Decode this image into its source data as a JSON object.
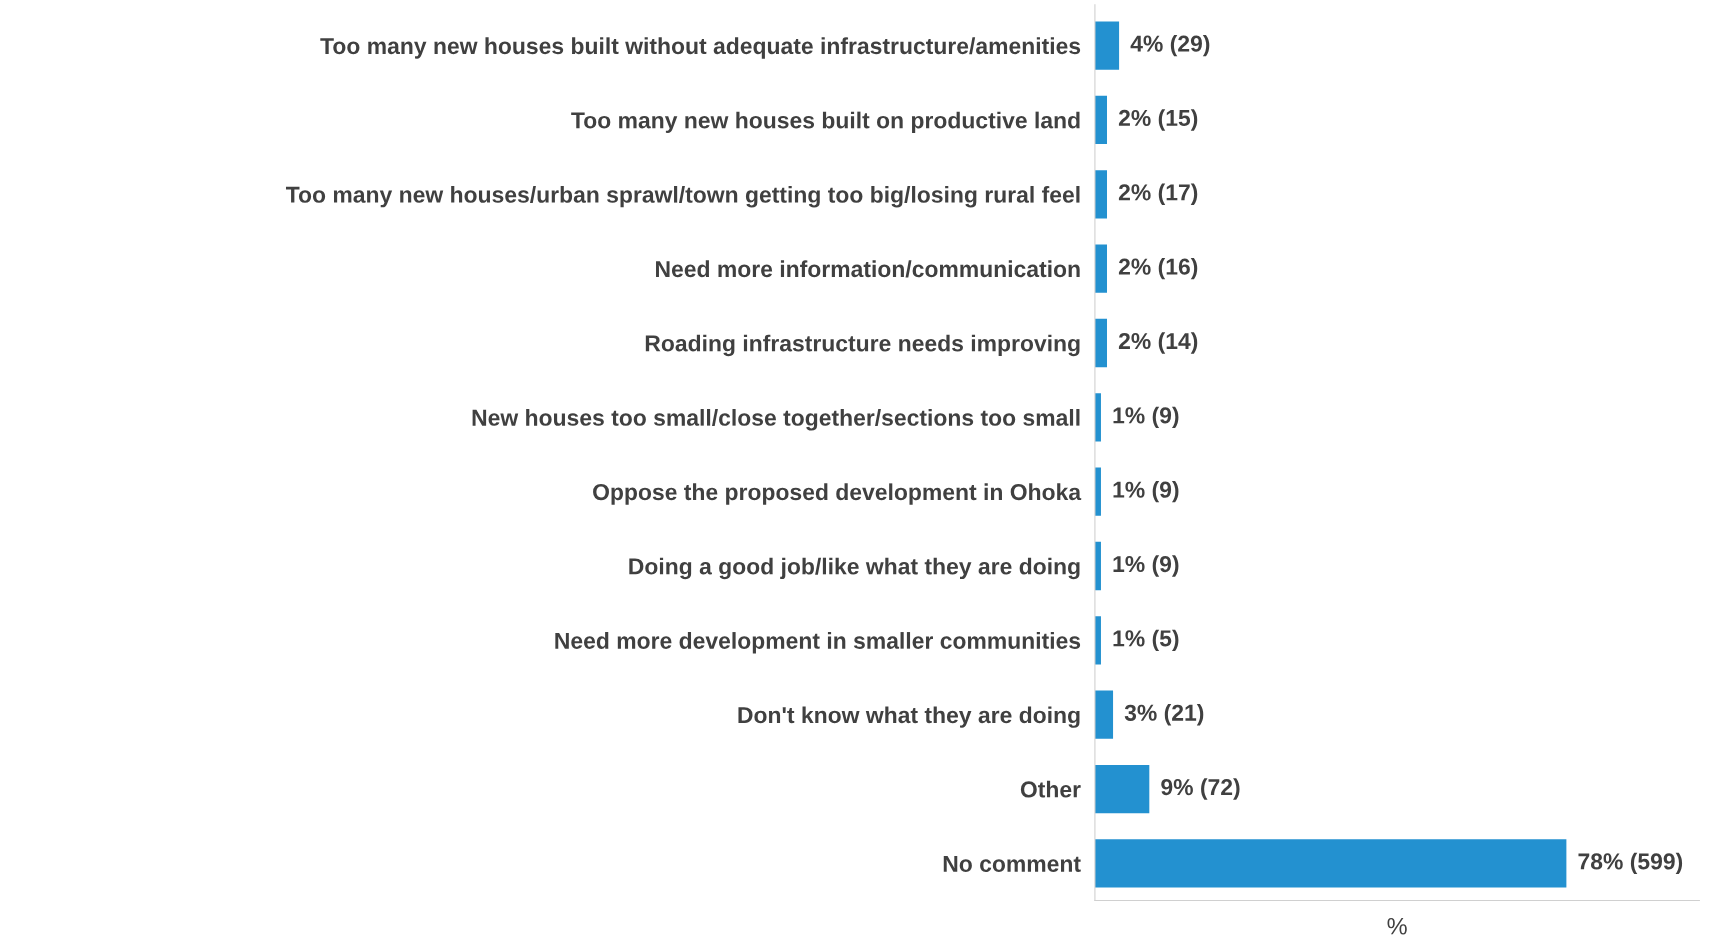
{
  "chart_data": {
    "type": "bar",
    "orientation": "horizontal",
    "xlabel": "%",
    "xlim": [
      0,
      100
    ],
    "tick_labels": "y",
    "grid": false,
    "legend": false,
    "color": "#2391d0",
    "categories": [
      "Too many new houses built without adequate infrastructure/amenities",
      "Too many new houses built on productive land",
      "Too many new houses/urban sprawl/town getting too big/losing rural feel",
      "Need more information/communication",
      "Roading infrastructure needs improving",
      "New houses too small/close together/sections too small",
      "Oppose the proposed development in Ohoka",
      "Doing a good job/like what they are doing",
      "Need more development in smaller communities",
      "Don't know what they are doing",
      "Other",
      "No comment"
    ],
    "values": [
      4,
      2,
      2,
      2,
      2,
      1,
      1,
      1,
      1,
      3,
      9,
      78
    ],
    "value_labels": [
      "4% (29)",
      "2% (15)",
      "2% (17)",
      "2% (16)",
      "2% (14)",
      "1% (9)",
      "1% (9)",
      "1% (9)",
      "1% (5)",
      "3% (21)",
      "9% (72)",
      "78% (599)"
    ]
  }
}
